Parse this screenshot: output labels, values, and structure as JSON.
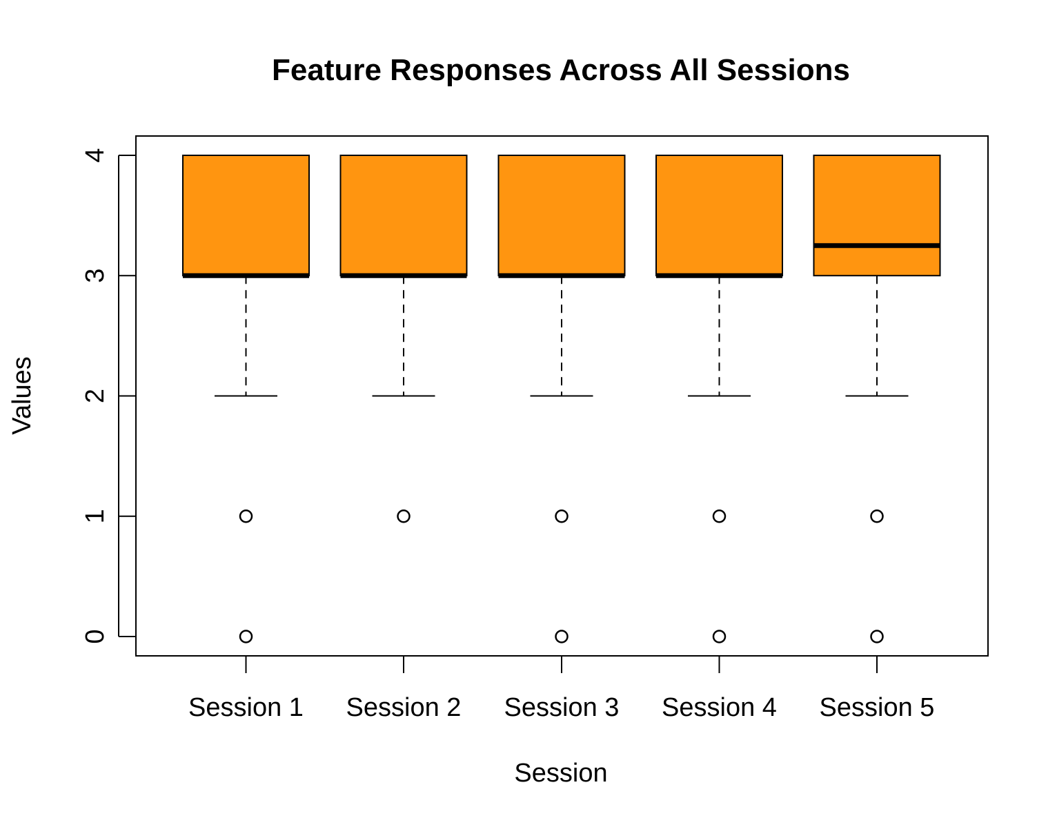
{
  "chart_data": {
    "type": "boxplot",
    "title": "Feature Responses Across All Sessions",
    "xlabel": "Session",
    "ylabel": "Values",
    "ylim": [
      0,
      4
    ],
    "yticks": [
      "0",
      "1",
      "2",
      "3",
      "4"
    ],
    "grid": false,
    "colors": {
      "box_fill": "#FF9510",
      "stroke": "#000000"
    },
    "categories": [
      "Session 1",
      "Session 2",
      "Session 3",
      "Session 4",
      "Session 5"
    ],
    "boxes": [
      {
        "whisker_low": 2,
        "q1": 3,
        "median": 3,
        "q3": 4,
        "whisker_high": 4,
        "outliers": [
          1,
          0
        ]
      },
      {
        "whisker_low": 2,
        "q1": 3,
        "median": 3,
        "q3": 4,
        "whisker_high": 4,
        "outliers": [
          1
        ]
      },
      {
        "whisker_low": 2,
        "q1": 3,
        "median": 3,
        "q3": 4,
        "whisker_high": 4,
        "outliers": [
          1,
          0
        ]
      },
      {
        "whisker_low": 2,
        "q1": 3,
        "median": 3,
        "q3": 4,
        "whisker_high": 4,
        "outliers": [
          1,
          0
        ]
      },
      {
        "whisker_low": 2,
        "q1": 3,
        "median": 3.25,
        "q3": 4,
        "whisker_high": 4,
        "outliers": [
          1,
          0
        ]
      }
    ]
  }
}
